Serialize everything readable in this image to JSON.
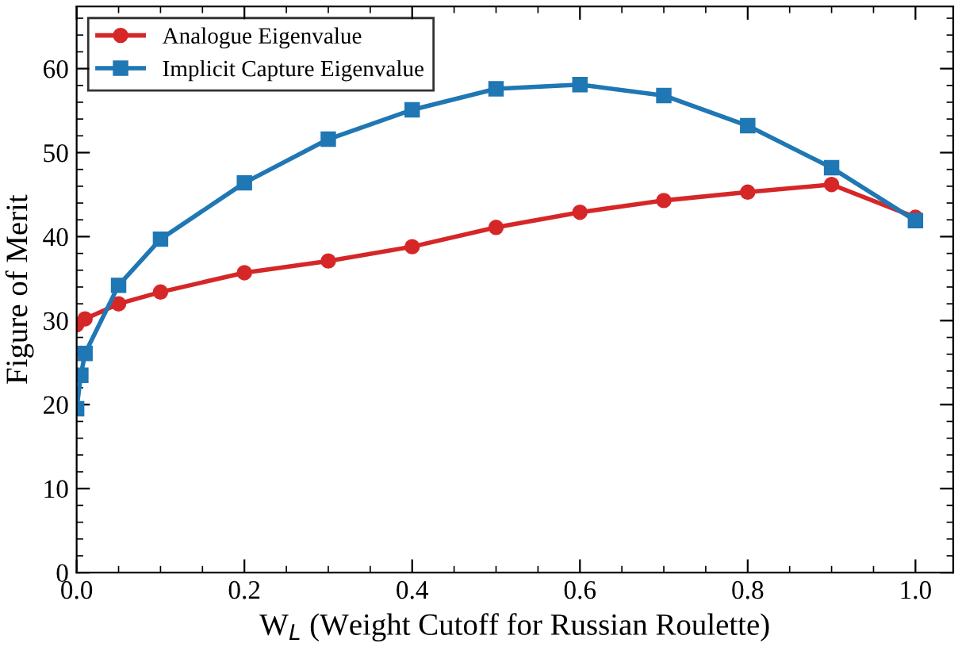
{
  "chart_data": {
    "type": "line",
    "xlabel": "W$_{L}$ (Weight Cutoff for Russian Roulette)",
    "ylabel": "Figure of Merit",
    "xlim": [
      0,
      1.045
    ],
    "xticks": [
      {
        "value": 0,
        "label": "0.0"
      },
      0.2,
      0.4,
      0.6,
      0.8,
      {
        "value": 1,
        "label": "1.0"
      }
    ],
    "ylim": [
      0,
      67.4
    ],
    "yticks": [
      0,
      10,
      20,
      30,
      40,
      50,
      60
    ],
    "grid": false,
    "legend": "top left",
    "series": [
      {
        "name": "Analogue Eigenvalue",
        "color": "#d62728",
        "marker": "circle",
        "x": [
          0,
          0.01,
          0.05,
          0.1,
          0.2,
          0.3,
          0.4,
          0.5,
          0.6,
          0.7,
          0.8,
          0.9,
          1.0
        ],
        "values": [
          29.5,
          30.2,
          32,
          33.4,
          35.7,
          37.1,
          38.8,
          41.1,
          42.9,
          44.3,
          45.3,
          46.2,
          42.3
        ]
      },
      {
        "name": "Implicit Capture Eigenvalue",
        "color": "#1f77b4",
        "marker": "square",
        "x": [
          0,
          0.005,
          0.01,
          0.05,
          0.1,
          0.2,
          0.3,
          0.4,
          0.5,
          0.6,
          0.7,
          0.8,
          0.9,
          1.0
        ],
        "values": [
          19.5,
          23.5,
          26.1,
          34.2,
          39.7,
          46.4,
          51.6,
          55.1,
          57.6,
          58.1,
          56.8,
          53.2,
          48.2,
          41.9
        ]
      }
    ]
  }
}
